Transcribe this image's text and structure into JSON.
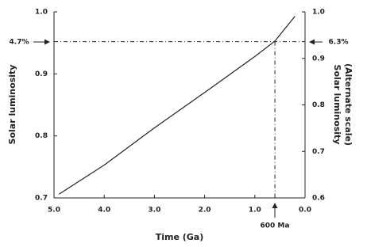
{
  "chart_data": {
    "type": "line",
    "xlabel": "Time (Ga)",
    "ylabel": "Solar luminosity",
    "y2label": [
      "Solar luminosity",
      "(Alternate scale)"
    ],
    "x": [
      4.9,
      4.0,
      3.0,
      2.0,
      1.0,
      0.6,
      0.2
    ],
    "series": [
      {
        "color": "#222222",
        "values": [
          0.706,
          0.753,
          0.813,
          0.87,
          0.928,
          0.953,
          0.993
        ]
      }
    ],
    "xlim": [
      5,
      0
    ],
    "xticks": [
      {
        "value": 5,
        "label": "5.0"
      },
      {
        "value": 4,
        "label": "4.0"
      },
      {
        "value": 3,
        "label": "3.0"
      },
      {
        "value": 2,
        "label": "2.0"
      },
      {
        "value": 1,
        "label": "1.0"
      },
      {
        "value": 0,
        "label": "0.0"
      }
    ],
    "ylim": [
      0.7,
      1.0
    ],
    "yticks": [
      0.7,
      0.8,
      0.9,
      {
        "value": 1,
        "label": "1.0"
      }
    ],
    "y2lim": [
      0.6,
      1.0
    ],
    "y2ticks": [
      0.6,
      0.7,
      0.8,
      0.9,
      {
        "value": 1,
        "label": "1.0"
      }
    ],
    "reference": {
      "x": 0.6,
      "y": 0.952
    },
    "annotations": [
      "4.7%",
      "6.3%",
      "600 Ma"
    ]
  }
}
